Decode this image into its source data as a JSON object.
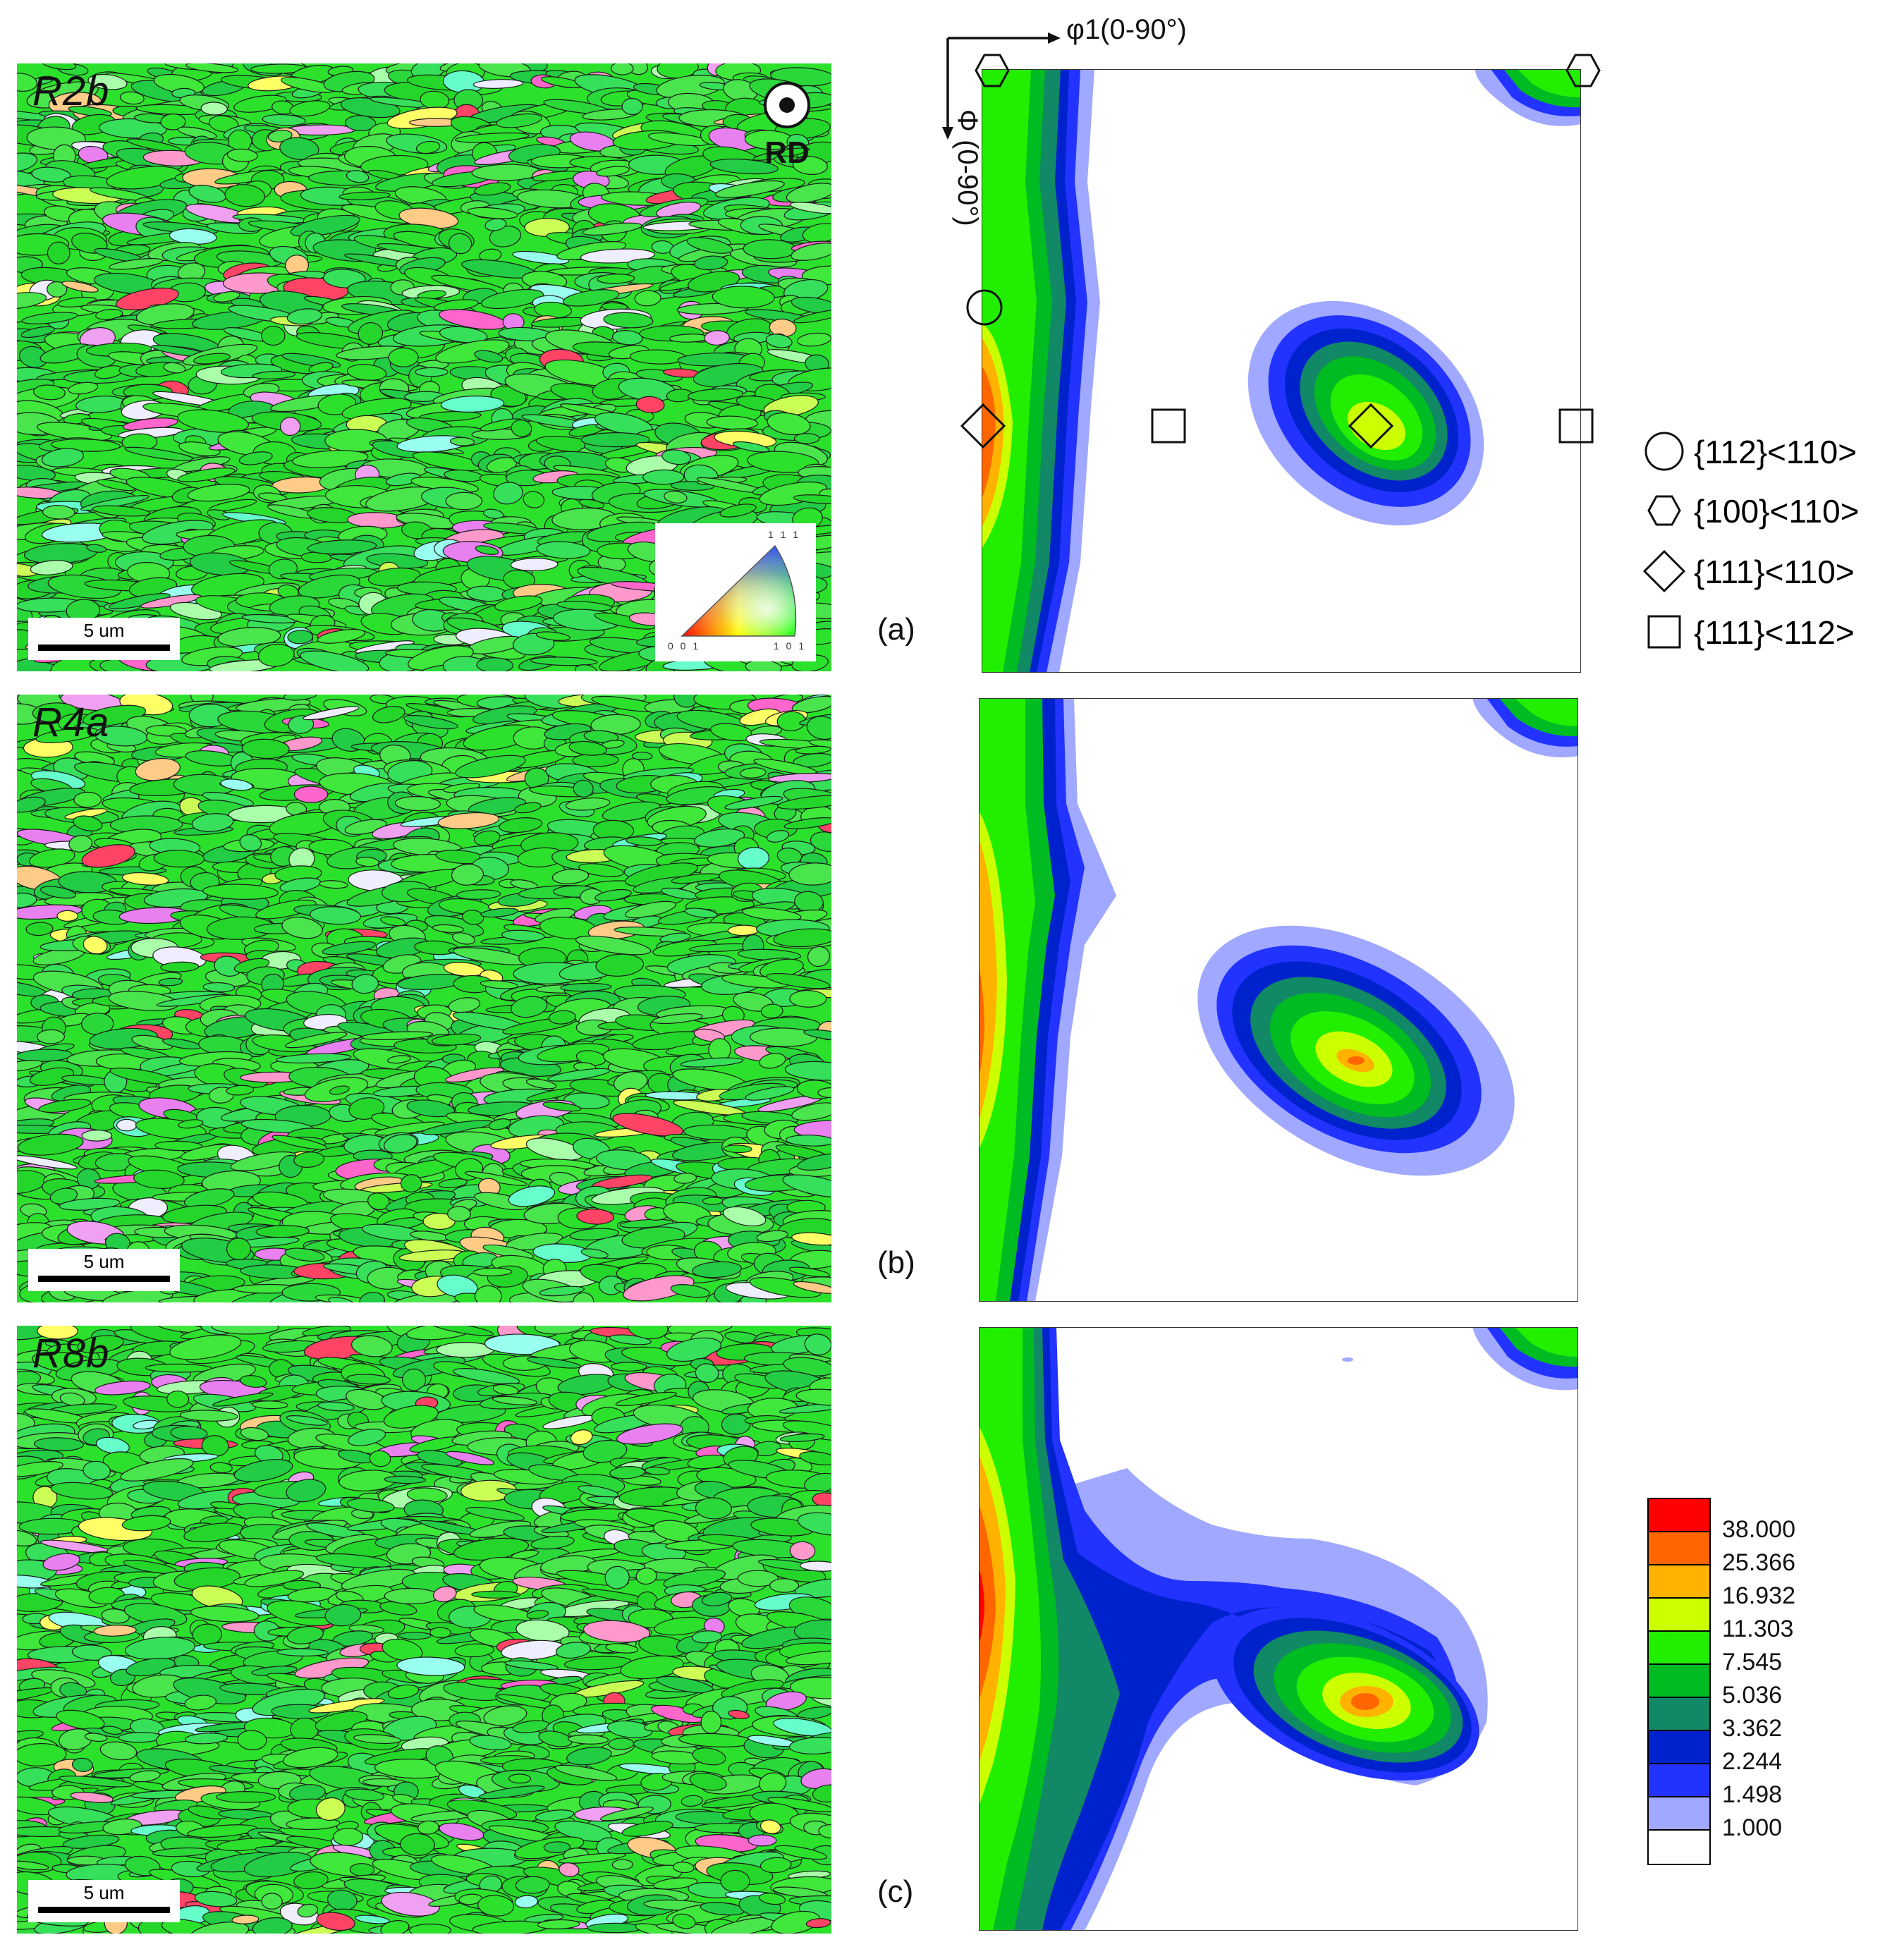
{
  "ebsd_maps": [
    {
      "sample": "R2b",
      "scale_bar": "5 um"
    },
    {
      "sample": "R4a",
      "scale_bar": "5 um"
    },
    {
      "sample": "R8b",
      "scale_bar": "5 um"
    }
  ],
  "rd_label": "RD",
  "ipf_key": {
    "top": "1 1 1",
    "left": "0 0 1",
    "right": "1 0 1"
  },
  "odf_axes": {
    "phi1": "φ1(0-90°)",
    "Phi": "Φ (0-90°)"
  },
  "panels": [
    {
      "tag": "(a)"
    },
    {
      "tag": "(b)"
    },
    {
      "tag": "(c)"
    }
  ],
  "texture_legend": [
    {
      "symbol": "circle-icon",
      "label": "{112}<110>"
    },
    {
      "symbol": "hexagon-icon",
      "label": "{100}<110>"
    },
    {
      "symbol": "diamond-icon",
      "label": "{111}<110>"
    },
    {
      "symbol": "square-icon",
      "label": "{111}<112>"
    }
  ],
  "colorbar": {
    "levels": [
      "38.000",
      "25.366",
      "16.932",
      "11.303",
      "7.545",
      "5.036",
      "3.362",
      "2.244",
      "1.498",
      "1.000"
    ],
    "colors": [
      "#ff0000",
      "#ff6600",
      "#ffb300",
      "#ccff00",
      "#22ee00",
      "#00bb22",
      "#118866",
      "#0022cc",
      "#2233ff",
      "#a0a8ff",
      "#ffffff"
    ]
  },
  "colors": {
    "grain_green": "#2ce12c",
    "boundary": "#1a1a1a"
  }
}
